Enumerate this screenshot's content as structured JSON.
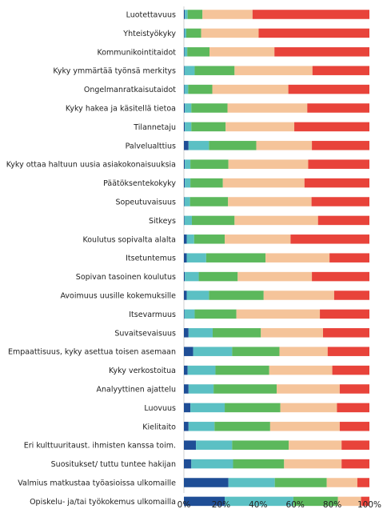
{
  "chart_data": {
    "type": "bar",
    "orientation": "horizontal",
    "stacked": "percent",
    "title": "",
    "xlabel": "",
    "ylabel": "",
    "xlim": [
      0,
      100
    ],
    "x_ticks": [
      "0%",
      "20%",
      "40%",
      "60%",
      "80%",
      "100%"
    ],
    "grid": false,
    "legend": "none",
    "categories": [
      "Luotettavuus",
      "Yhteistyökyky",
      "Kommunikointitaidot",
      "Kyky ymmärtää työnsä merkitys",
      "Ongelmanratkaisutaidot",
      "Kyky hakea ja käsitellä tietoa",
      "Tilannetaju",
      "Palvelualttius",
      "Kyky ottaa haltuun uusia asiakokonaisuuksia",
      "Päätöksentekokyky",
      "Sopeutuvaisuus",
      "Sitkeys",
      "Koulutus sopivalta alalta",
      "Itsetuntemus",
      "Sopivan tasoinen koulutus",
      "Avoimuus uusille kokemuksille",
      "Itsevarmuus",
      "Suvaitsevaisuus",
      "Empaattisuus, kyky asettua toisen asemaan",
      "Kyky verkostoitua",
      "Analyyttinen ajattelu",
      "Luovuus",
      "Kielitaito",
      "Eri kulttuuritaust. ihmisten kanssa toim.",
      "Suositukset/ tuttu tuntee hakijan",
      "Valmius matkustaa työasioissa ulkomaille",
      "Opiskelu- ja/tai työkokemus ulkomailla"
    ],
    "series": [
      {
        "color": "#1f4e96",
        "values": [
          0.5,
          0.3,
          0.3,
          0.3,
          0.3,
          0.5,
          0.5,
          2.5,
          0.5,
          0.5,
          0.3,
          0.3,
          1.5,
          1.5,
          0.5,
          1.5,
          0.3,
          2.5,
          5,
          2,
          2.5,
          3.5,
          2.5,
          6.5,
          4,
          24,
          22
        ]
      },
      {
        "color": "#5bc0c4",
        "values": [
          1.5,
          1,
          1.5,
          5.5,
          2,
          3.5,
          3.5,
          11,
          3,
          3,
          3,
          4,
          4,
          10.5,
          7.5,
          12,
          5.5,
          13,
          21,
          15,
          13.5,
          18.5,
          14,
          19.5,
          22.5,
          25,
          37
        ]
      },
      {
        "color": "#5cb85c",
        "values": [
          8,
          8,
          12,
          21.5,
          13,
          19.5,
          18.5,
          25.5,
          20.5,
          17.5,
          20.5,
          23,
          16.5,
          32,
          21,
          29.5,
          22.5,
          26,
          25.5,
          29,
          34,
          30,
          30,
          30.5,
          27.5,
          28,
          24
        ]
      },
      {
        "color": "#f5c49a",
        "values": [
          27,
          31,
          35,
          42,
          41,
          43,
          37,
          30,
          43,
          44,
          45,
          45,
          35.5,
          34.5,
          40,
          38,
          45,
          33.5,
          26,
          34,
          34,
          30.5,
          37.5,
          28.5,
          31,
          16.5,
          12.5
        ]
      },
      {
        "color": "#e8433a",
        "values": [
          63,
          59.7,
          51.2,
          30.7,
          43.7,
          33.5,
          40.5,
          31,
          33,
          35,
          31.2,
          27.7,
          42.5,
          21.5,
          31,
          19,
          26.7,
          25,
          22.5,
          20,
          16,
          17.5,
          16,
          15,
          15,
          6.5,
          4.5
        ]
      }
    ]
  }
}
